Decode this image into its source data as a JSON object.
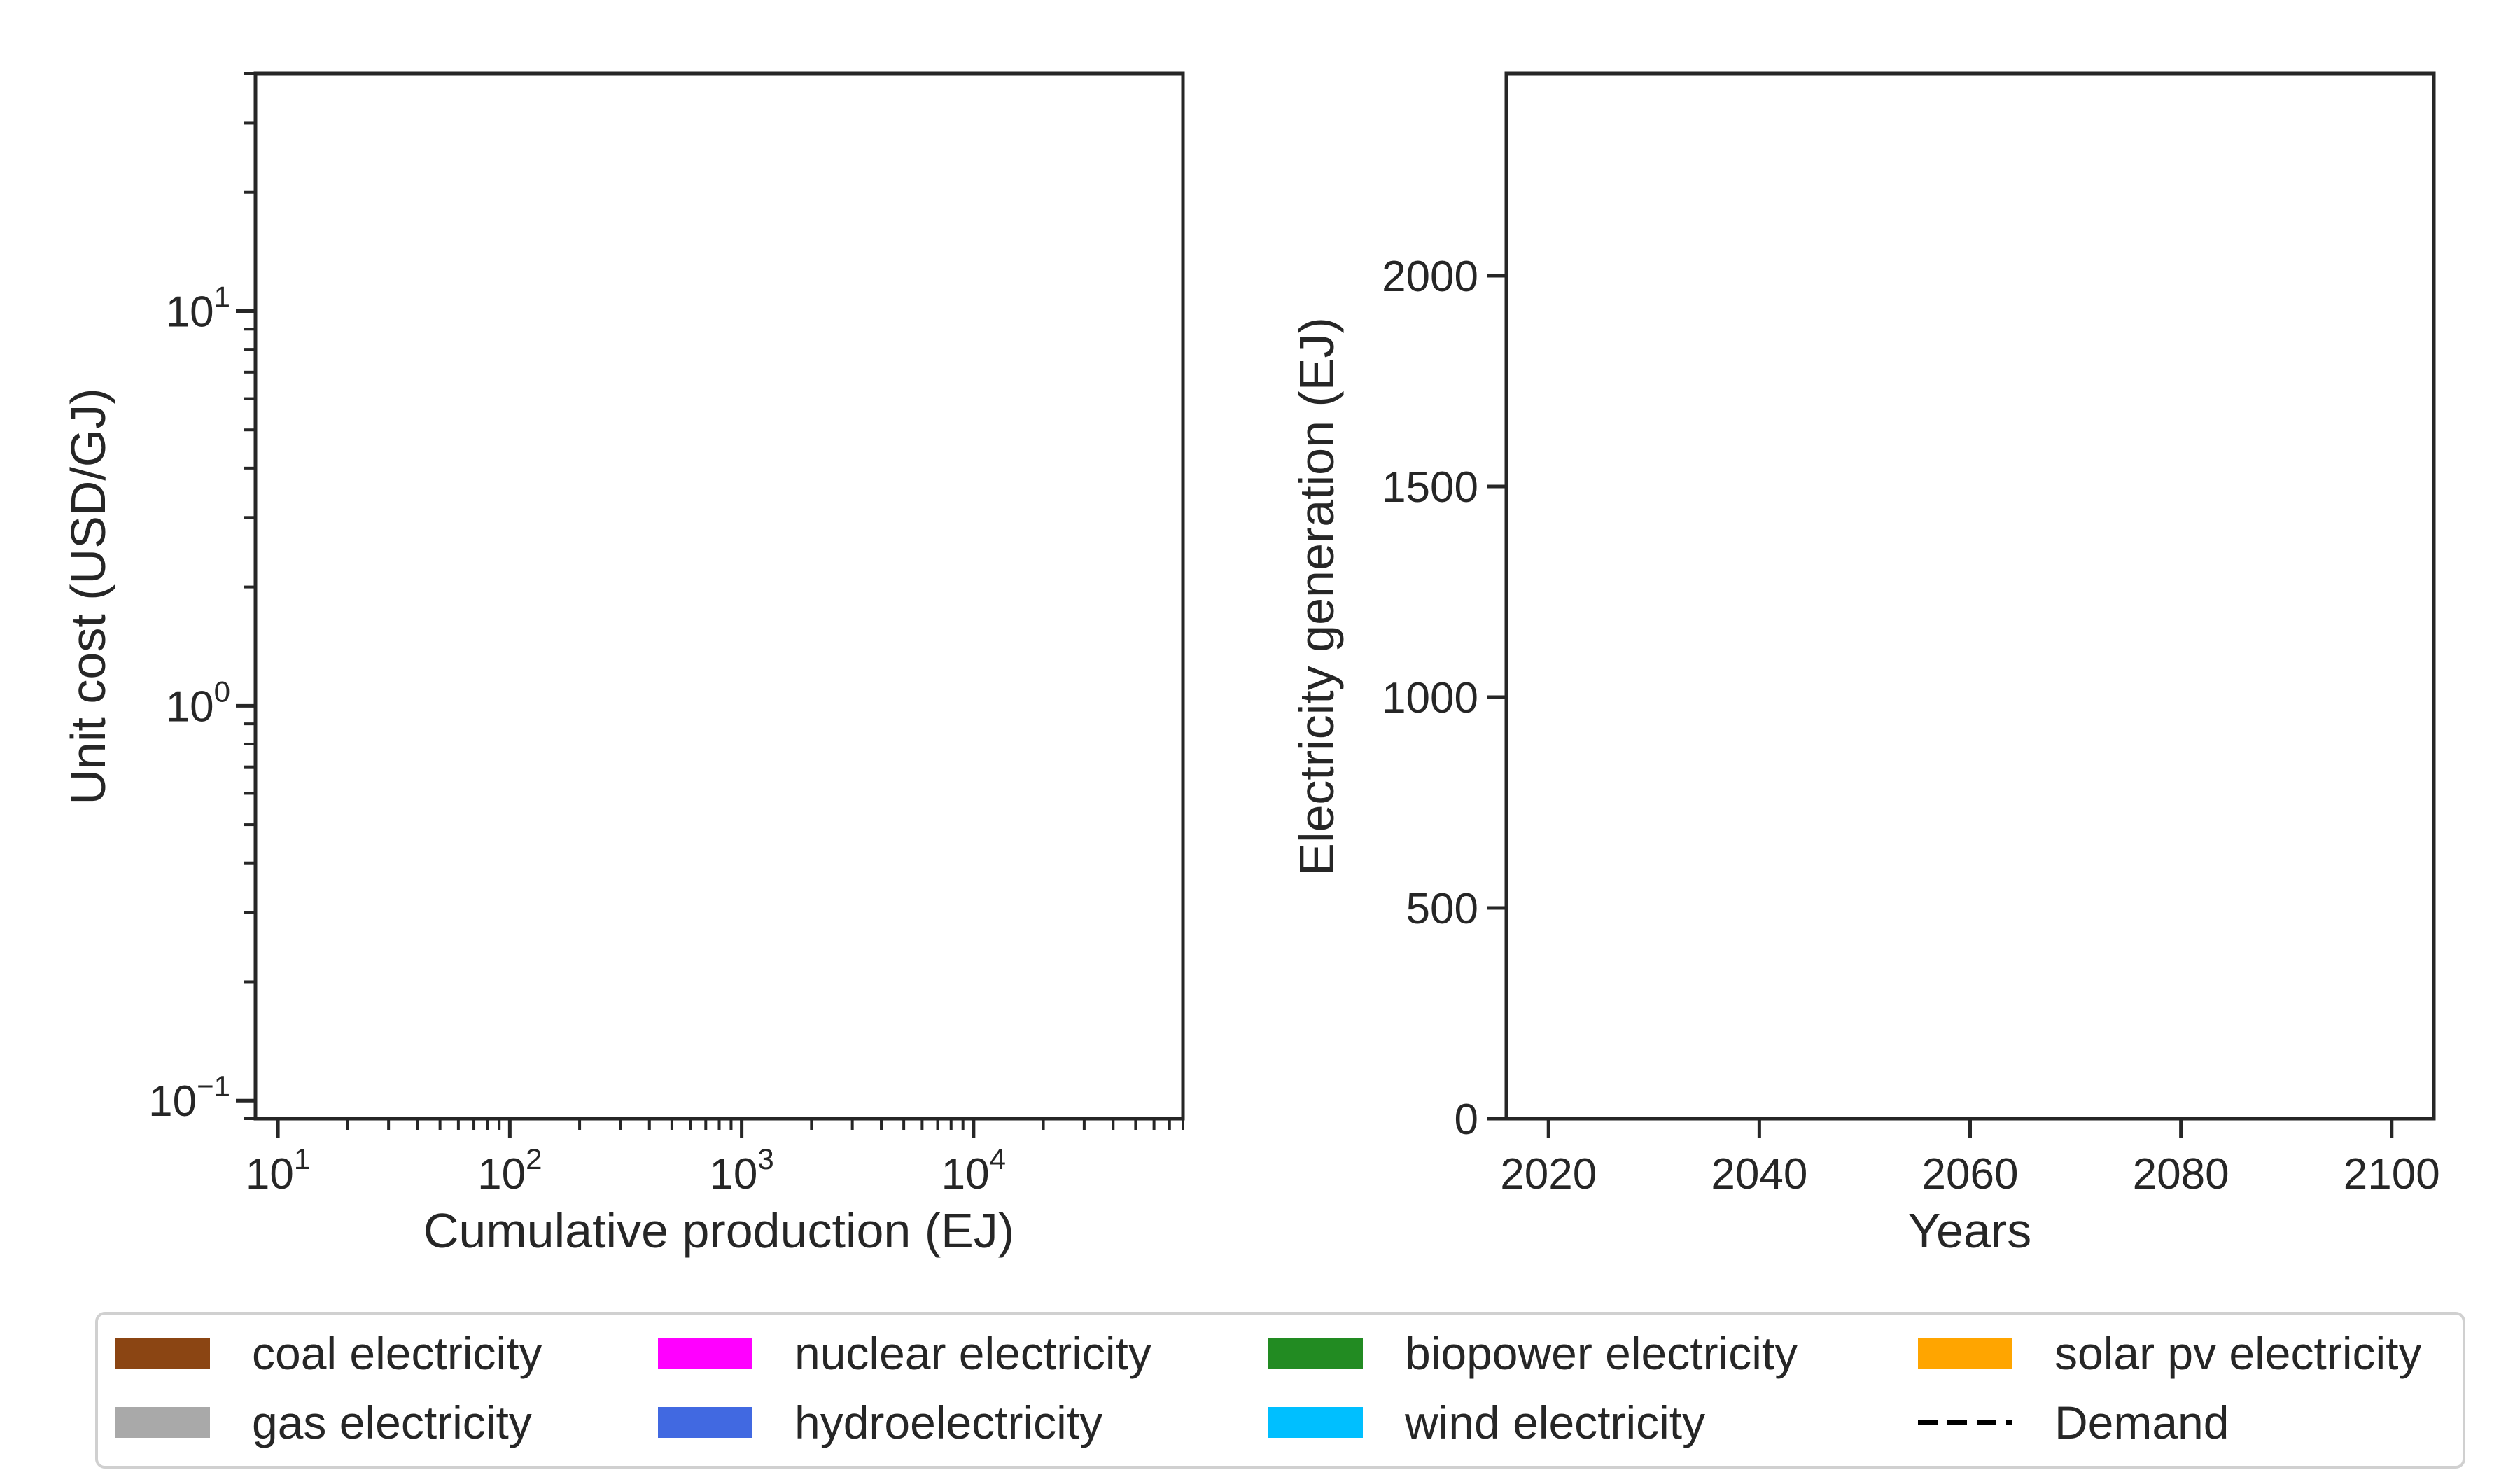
{
  "chart_data": [
    {
      "type": "line",
      "title": "",
      "xlabel": "Cumulative production (EJ)",
      "ylabel": "Unit cost (USD/GJ)",
      "xscale": "log",
      "yscale": "log",
      "xlim": [
        8,
        80000
      ],
      "ylim": [
        0.09,
        40
      ],
      "xticks": [
        {
          "value": 10,
          "base": "10",
          "exp": "1"
        },
        {
          "value": 100,
          "base": "10",
          "exp": "2"
        },
        {
          "value": 1000,
          "base": "10",
          "exp": "3"
        },
        {
          "value": 10000,
          "base": "10",
          "exp": "4"
        }
      ],
      "yticks": [
        {
          "value": 0.1,
          "base": "10",
          "exp": "−1"
        },
        {
          "value": 1,
          "base": "10",
          "exp": "0"
        },
        {
          "value": 10,
          "base": "10",
          "exp": "1"
        }
      ],
      "grid": false,
      "series": []
    },
    {
      "type": "area",
      "title": "",
      "xlabel": "Years",
      "ylabel": "Electricity generation (EJ)",
      "xlim": [
        2016,
        2104
      ],
      "ylim": [
        0,
        2480
      ],
      "xticks": [
        "2020",
        "2040",
        "2060",
        "2080",
        "2100"
      ],
      "yticks": [
        "0",
        "500",
        "1000",
        "1500",
        "2000"
      ],
      "grid": false,
      "series": []
    }
  ],
  "legend": {
    "placement": "bottom",
    "items": [
      {
        "label": "coal electricity",
        "color": "#8B4513",
        "kind": "patch"
      },
      {
        "label": "gas electricity",
        "color": "#A9A9A9",
        "kind": "patch"
      },
      {
        "label": "nuclear electricity",
        "color": "#FF00FF",
        "kind": "patch"
      },
      {
        "label": "hydroelectricity",
        "color": "#4169E1",
        "kind": "patch"
      },
      {
        "label": "biopower electricity",
        "color": "#228B22",
        "kind": "patch"
      },
      {
        "label": "wind electricity",
        "color": "#00BFFF",
        "kind": "patch"
      },
      {
        "label": "solar pv electricity",
        "color": "#FFA500",
        "kind": "patch"
      },
      {
        "label": "Demand",
        "color": "#000000",
        "kind": "dashed-line"
      }
    ]
  }
}
